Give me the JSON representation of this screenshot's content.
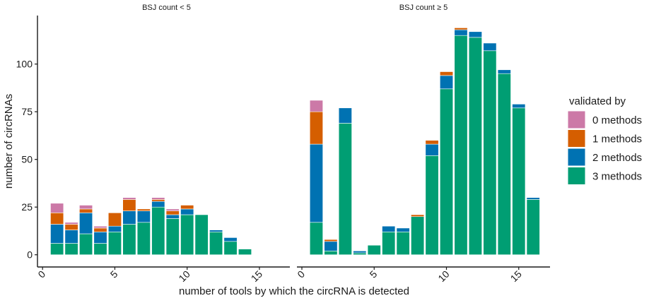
{
  "chart_data": {
    "type": "bar",
    "stacked": true,
    "xlabel": "number of tools by which the circRNA is detected",
    "ylabel": "number of circRNAs",
    "ylim": [
      -4.5,
      125
    ],
    "yticks": [
      0,
      25,
      50,
      75,
      100
    ],
    "xlim": [
      -0.35,
      17.15
    ],
    "xticks": [
      0,
      5,
      10,
      15
    ],
    "legend": {
      "title": "validated by",
      "position": "right",
      "entries": [
        "0 methods",
        "1 methods",
        "2 methods",
        "3 methods"
      ]
    },
    "colors": {
      "0 methods": "#CC79A7",
      "1 methods": "#D55E00",
      "2 methods": "#0072B2",
      "3 methods": "#009E73"
    },
    "panels": [
      {
        "title": "BSJ count < 5",
        "x": [
          1,
          2,
          3,
          4,
          5,
          6,
          7,
          8,
          9,
          10,
          11,
          12,
          13,
          14
        ],
        "series": [
          {
            "name": "3 methods",
            "values": [
              6,
              6,
              11,
              6,
              12,
              16,
              17,
              25,
              19,
              21,
              21,
              12,
              7,
              3
            ]
          },
          {
            "name": "2 methods",
            "values": [
              10,
              7,
              11,
              6,
              3,
              7,
              6,
              3,
              2,
              3,
              0,
              1,
              2,
              0
            ]
          },
          {
            "name": "1 methods",
            "values": [
              6,
              3,
              2,
              2,
              7,
              6,
              1,
              1,
              2,
              2,
              0,
              0,
              0,
              0
            ]
          },
          {
            "name": "0 methods",
            "values": [
              5,
              1,
              2,
              1,
              0,
              1,
              0,
              1,
              1,
              0,
              0,
              0,
              0,
              0
            ]
          }
        ]
      },
      {
        "title": "BSJ count ≥ 5",
        "x": [
          1,
          2,
          3,
          4,
          5,
          6,
          7,
          8,
          9,
          10,
          11,
          12,
          13,
          14,
          15,
          16
        ],
        "series": [
          {
            "name": "3 methods",
            "values": [
              17,
              2,
              69,
              1,
              5,
              12,
              12,
              20,
              52,
              87,
              115,
              114,
              107,
              95,
              77,
              29
            ]
          },
          {
            "name": "2 methods",
            "values": [
              41,
              5,
              8,
              1,
              0,
              3,
              2,
              0,
              6,
              7,
              3,
              3,
              4,
              2,
              2,
              1
            ]
          },
          {
            "name": "1 methods",
            "values": [
              17,
              1,
              0,
              0,
              0,
              0,
              0,
              1,
              2,
              2,
              1,
              0,
              0,
              0,
              0,
              0
            ]
          },
          {
            "name": "0 methods",
            "values": [
              6,
              0,
              0,
              0,
              0,
              0,
              0,
              0,
              0,
              0,
              0,
              0,
              0,
              0,
              0,
              0
            ]
          }
        ]
      }
    ]
  }
}
